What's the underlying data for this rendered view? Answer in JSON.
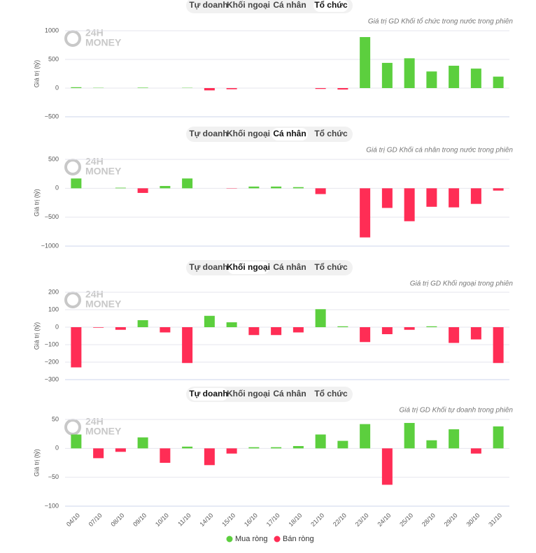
{
  "tabs": [
    "Tự doanh",
    "Khối ngoại",
    "Cá nhân",
    "Tổ chức"
  ],
  "watermark": [
    "24H",
    "MONEY"
  ],
  "legend": [
    {
      "name": "Mua ròng",
      "color": "#5ccf3e"
    },
    {
      "name": "Bán ròng",
      "color": "#ff2d55"
    }
  ],
  "chart_data": [
    {
      "type": "bar",
      "active_tab": 3,
      "subtitle": "Giá trị GD Khối tổ chức trong nước trong phiên",
      "y_label": "Giá trị (tỷ)",
      "ylim": [
        -500,
        1000
      ],
      "yticks": [
        {
          "value": -500,
          "label": "−500"
        },
        0,
        500,
        1000
      ],
      "grid": true,
      "values": [
        15,
        5,
        0,
        8,
        0,
        5,
        -40,
        -20,
        0,
        0,
        0,
        -15,
        -25,
        890,
        440,
        520,
        290,
        390,
        340,
        200
      ]
    },
    {
      "type": "bar",
      "active_tab": 2,
      "subtitle": "Giá trị GD Khối cá nhân trong nước trong phiên",
      "y_label": "Giá trị (tỷ)",
      "ylim": [
        -1000,
        500
      ],
      "yticks": [
        {
          "value": -1000,
          "label": "−1000"
        },
        {
          "value": -500,
          "label": "−500"
        },
        0,
        500
      ],
      "grid": true,
      "values": [
        170,
        0,
        10,
        -80,
        40,
        170,
        0,
        -5,
        30,
        30,
        20,
        -100,
        0,
        -850,
        -340,
        -570,
        -320,
        -330,
        -270,
        -40
      ]
    },
    {
      "type": "bar",
      "active_tab": 1,
      "subtitle": "Giá trị GD Khối ngoại trong phiên",
      "y_label": "Giá trị (tỷ)",
      "ylim": [
        -300,
        200
      ],
      "yticks": [
        {
          "value": -300,
          "label": "−300"
        },
        {
          "value": -200,
          "label": "−200"
        },
        {
          "value": -100,
          "label": "−100"
        },
        0,
        100,
        200
      ],
      "grid": true,
      "values": [
        -230,
        -3,
        -15,
        40,
        -30,
        -205,
        65,
        28,
        -45,
        -45,
        -30,
        103,
        5,
        -85,
        -40,
        -15,
        5,
        -90,
        -70,
        -205
      ]
    },
    {
      "type": "bar",
      "active_tab": 0,
      "subtitle": "Giá trị GD Khối tự doanh trong phiên",
      "y_label": "Giá trị (tỷ)",
      "ylim": [
        -100,
        50
      ],
      "yticks": [
        {
          "value": -100,
          "label": "−100"
        },
        {
          "value": -50,
          "label": "−50"
        },
        0,
        50
      ],
      "grid": true,
      "categories": [
        "04/10",
        "07/10",
        "08/10",
        "09/10",
        "10/10",
        "11/10",
        "14/10",
        "15/10",
        "16/10",
        "17/10",
        "18/10",
        "21/10",
        "22/10",
        "23/10",
        "24/10",
        "25/10",
        "28/10",
        "29/10",
        "30/10",
        "31/10"
      ],
      "values": [
        24,
        -17,
        -6,
        19,
        -25,
        3,
        -29,
        -9,
        2,
        2,
        4,
        24,
        13,
        42,
        -63,
        44,
        14,
        33,
        -9,
        38
      ]
    }
  ]
}
